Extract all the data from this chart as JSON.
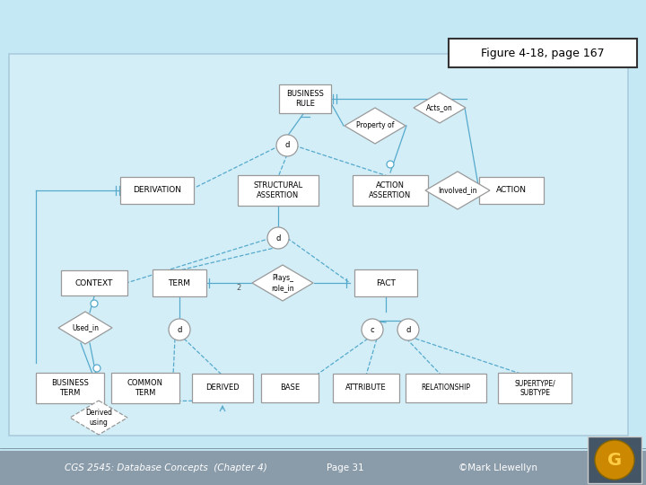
{
  "bg_color": "#c5e8f5",
  "diagram_bg": "#cce9f5",
  "footer_bg": "#8899aa",
  "line_color": "#55aacc",
  "box_ec": "#999999",
  "box_fc": "white",
  "title_box": "Figure 4-18, page 167",
  "footer_left": "CGS 2545: Database Concepts  (Chapter 4)",
  "footer_mid": "Page 31",
  "footer_right": "©Mark Llewellyn",
  "gecko_color": "#cc8800"
}
